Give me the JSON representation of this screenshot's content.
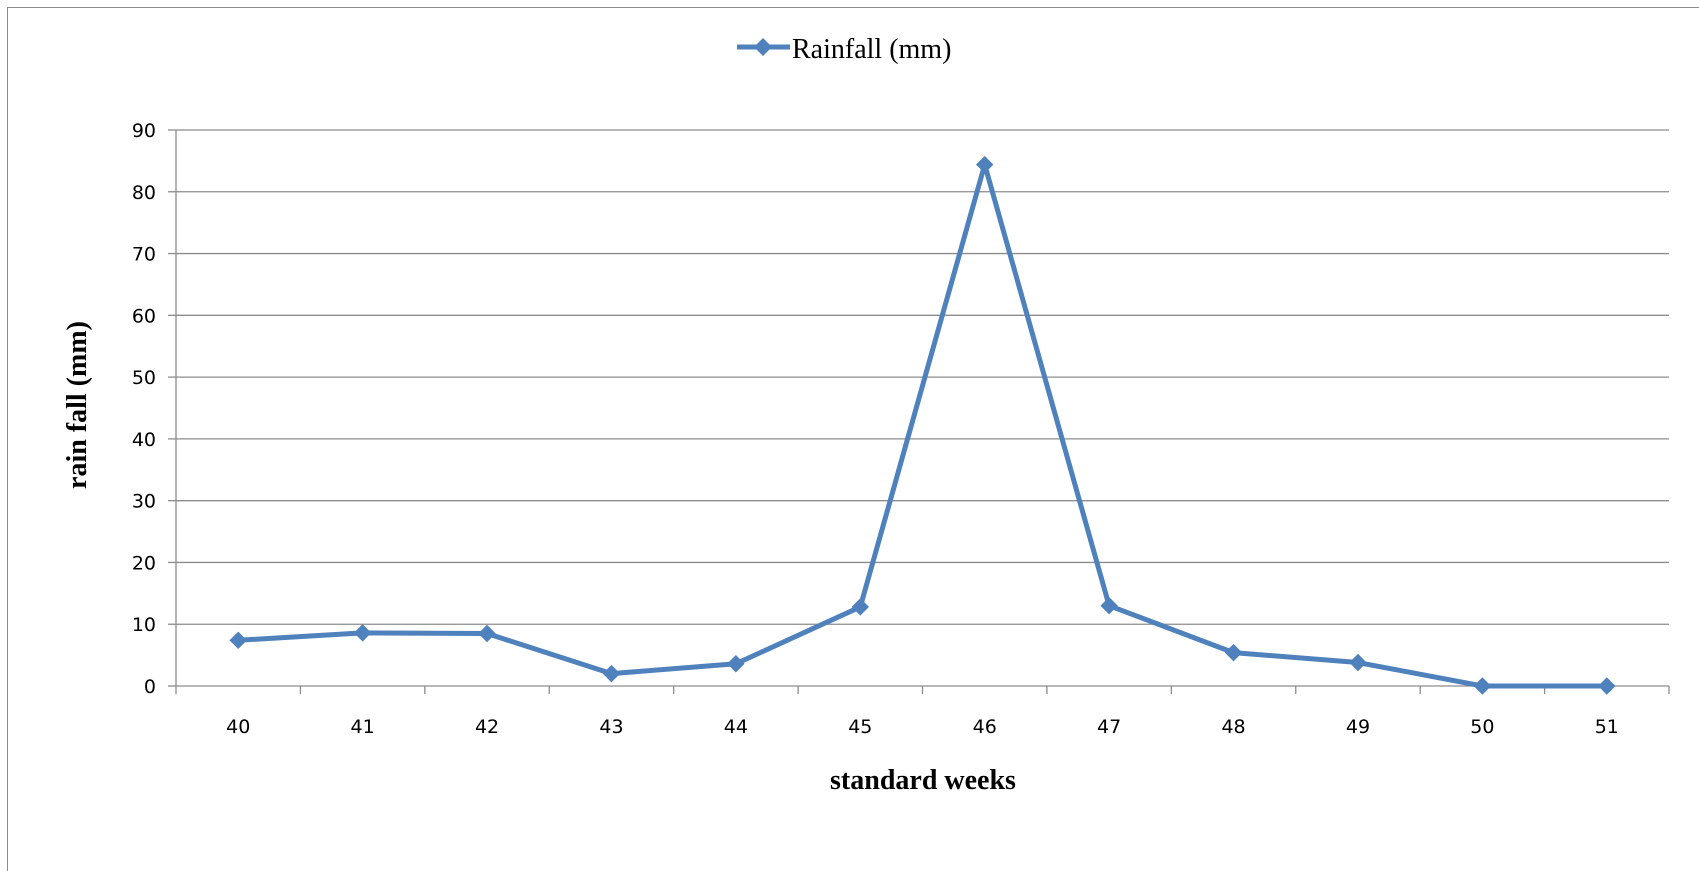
{
  "chart_data": {
    "type": "line",
    "categories": [
      "40",
      "41",
      "42",
      "43",
      "44",
      "45",
      "46",
      "47",
      "48",
      "49",
      "50",
      "51"
    ],
    "series": [
      {
        "name": "Rainfall (mm)",
        "values": [
          7.4,
          8.6,
          8.5,
          2.0,
          3.6,
          12.8,
          84.4,
          13.0,
          5.4,
          3.8,
          0.0,
          0.0
        ],
        "color": "#4f81bd",
        "marker": "diamond"
      }
    ],
    "title": "",
    "xlabel": "standard weeks",
    "ylabel": "rain fall (mm)",
    "ylim": [
      0,
      90
    ],
    "yticks": [
      "0",
      "10",
      "20",
      "30",
      "40",
      "50",
      "60",
      "70",
      "80",
      "90"
    ],
    "grid": true,
    "legend_position": "top"
  }
}
